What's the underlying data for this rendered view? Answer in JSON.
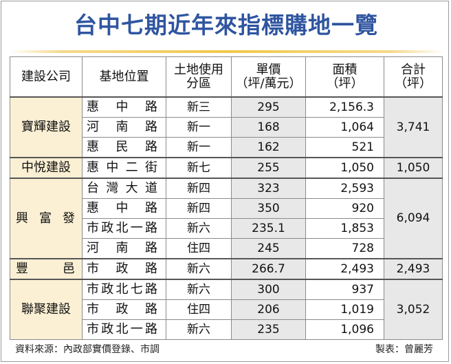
{
  "title": "台中七期近年來指標購地一覽",
  "headers": {
    "company": "建設公司",
    "location": "基地位置",
    "zoning_l1": "土地使用",
    "zoning_l2": "分區",
    "price_l1": "單價",
    "price_l2": "（坪/萬元）",
    "area_l1": "面積",
    "area_l2": "（坪）",
    "total_l1": "合計",
    "total_l2": "（坪）"
  },
  "groups": [
    {
      "company": "寶輝建設",
      "total": "3,741",
      "rows": [
        {
          "location": "惠中路",
          "zoning": "新三",
          "price": "295",
          "area": "2,156.3"
        },
        {
          "location": "河南路",
          "zoning": "新一",
          "price": "168",
          "area": "1,064"
        },
        {
          "location": "惠民路",
          "zoning": "新一",
          "price": "162",
          "area": "521"
        }
      ]
    },
    {
      "company": "中悅建設",
      "total": "1,050",
      "rows": [
        {
          "location": "惠中二街",
          "zoning": "新七",
          "price": "255",
          "area": "1,050"
        }
      ]
    },
    {
      "company": "興富發",
      "total": "6,094",
      "rows": [
        {
          "location": "台灣大道",
          "zoning": "新四",
          "price": "323",
          "area": "2,593"
        },
        {
          "location": "惠中路",
          "zoning": "新四",
          "price": "350",
          "area": "920"
        },
        {
          "location": "市政北一路",
          "zoning": "新六",
          "price": "235.1",
          "area": "1,853"
        },
        {
          "location": "河南路",
          "zoning": "住四",
          "price": "245",
          "area": "728"
        }
      ]
    },
    {
      "company": "豐邑",
      "total": "2,493",
      "rows": [
        {
          "location": "市政路",
          "zoning": "新六",
          "price": "266.7",
          "area": "2,493"
        }
      ]
    },
    {
      "company": "聯聚建設",
      "total": "3,052",
      "rows": [
        {
          "location": "市政北七路",
          "zoning": "新六",
          "price": "300",
          "area": "937"
        },
        {
          "location": "市政路",
          "zoning": "住四",
          "price": "206",
          "area": "1,019"
        },
        {
          "location": "市政北一路",
          "zoning": "新六",
          "price": "235",
          "area": "1,096"
        }
      ]
    }
  ],
  "footer": {
    "source": "資料來源：內政部實價登錄、市調",
    "credit": "製表：曾麗芳"
  }
}
